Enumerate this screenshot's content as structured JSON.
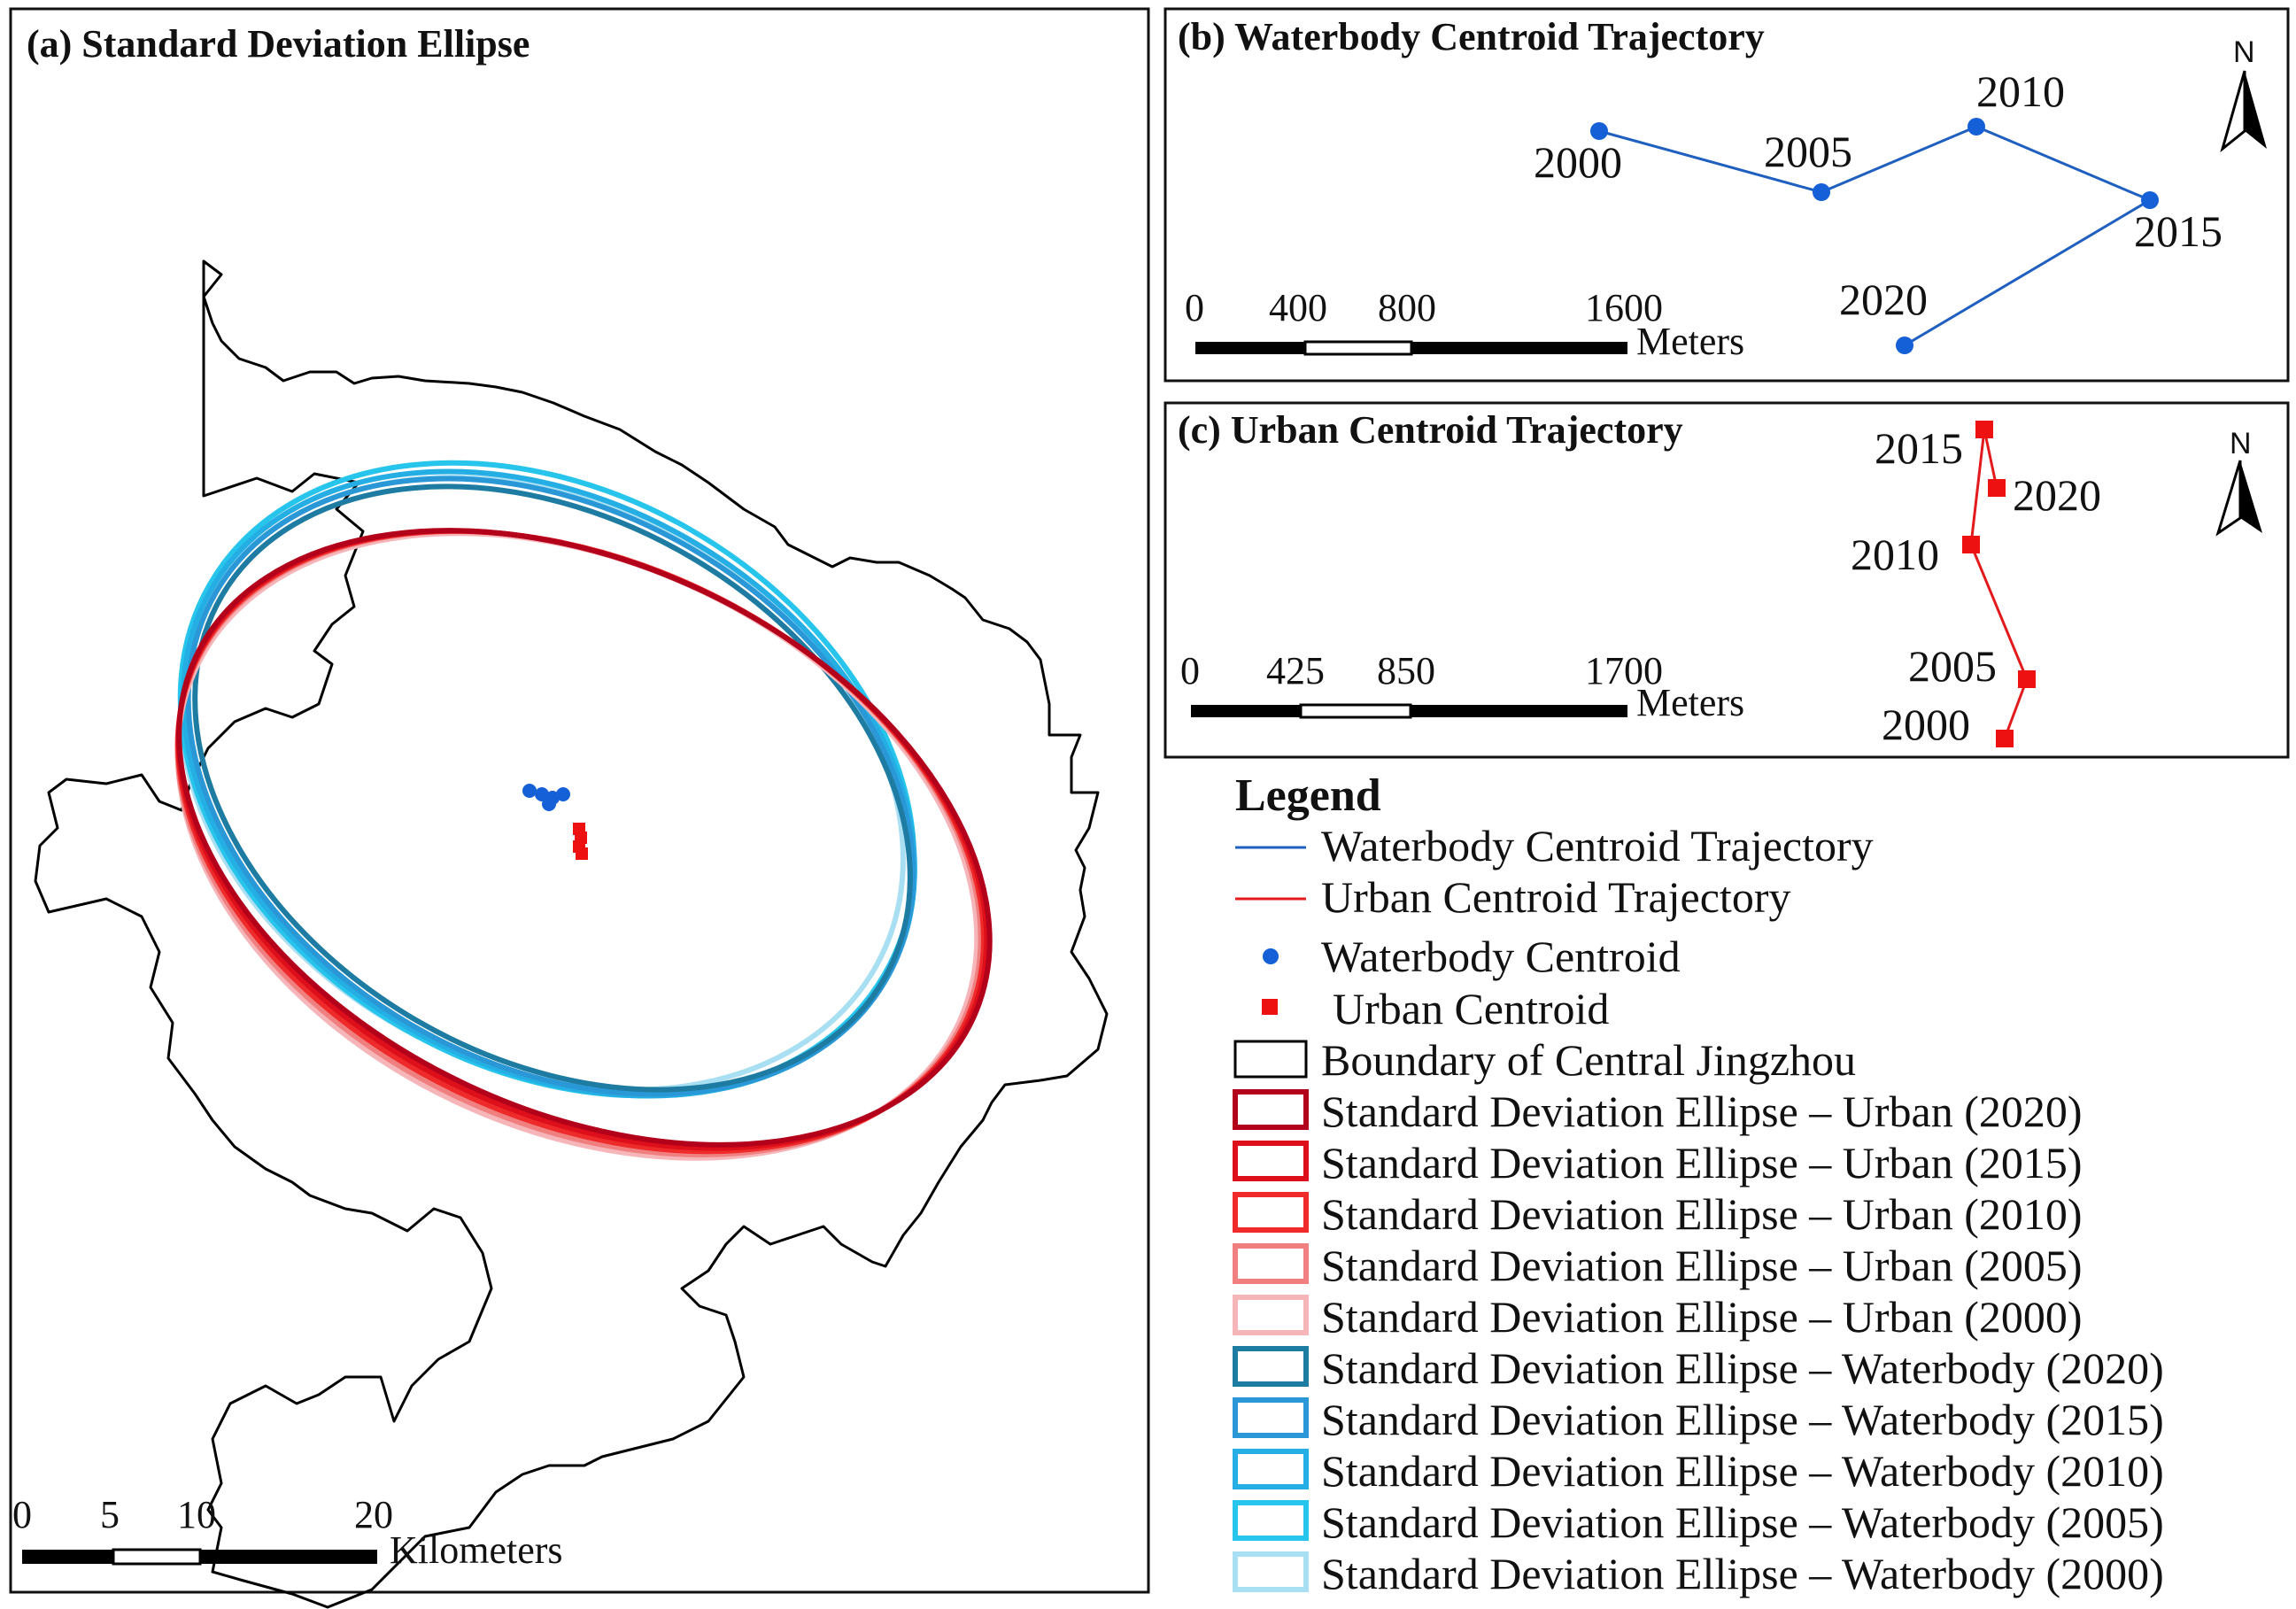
{
  "panel_a": {
    "title": "(a) Standard Deviation Ellipse",
    "scale": {
      "labels": [
        "0",
        "5",
        "10",
        "20"
      ],
      "unit": "Kilometers"
    }
  },
  "panel_b": {
    "title": "(b) Waterbody Centroid Trajectory",
    "north": "N",
    "points": [
      {
        "year": "2000"
      },
      {
        "year": "2005"
      },
      {
        "year": "2010"
      },
      {
        "year": "2015"
      },
      {
        "year": "2020"
      }
    ],
    "scale": {
      "labels": [
        "0",
        "400",
        "800",
        "1600"
      ],
      "unit": "Meters"
    }
  },
  "panel_c": {
    "title": "(c) Urban Centroid Trajectory",
    "north": "N",
    "points": [
      {
        "year": "2000"
      },
      {
        "year": "2005"
      },
      {
        "year": "2010"
      },
      {
        "year": "2015"
      },
      {
        "year": "2020"
      }
    ],
    "scale": {
      "labels": [
        "0",
        "425",
        "850",
        "1700"
      ],
      "unit": "Meters"
    }
  },
  "legend": {
    "title": "Legend",
    "items": [
      {
        "label": "Waterbody Centroid Trajectory",
        "color": "#1f5fbf"
      },
      {
        "label": "Urban Centroid Trajectory",
        "color": "#e31a1c"
      },
      {
        "label": "Waterbody Centroid",
        "color": "#1560d6"
      },
      {
        "label": "Urban Centroid",
        "color": "#ee1111"
      },
      {
        "label": "Boundary of Central Jingzhou",
        "color": "#000000"
      },
      {
        "label": "Standard Deviation Ellipse – Urban (2020)",
        "color": "#b3001b"
      },
      {
        "label": "Standard Deviation Ellipse – Urban (2015)",
        "color": "#dd0f1a"
      },
      {
        "label": "Standard Deviation Ellipse – Urban (2010)",
        "color": "#ee2a2a"
      },
      {
        "label": "Standard Deviation Ellipse – Urban (2005)",
        "color": "#f08080"
      },
      {
        "label": "Standard Deviation Ellipse – Urban (2000)",
        "color": "#f6b5b8"
      },
      {
        "label": "Standard Deviation Ellipse – Waterbody (2020)",
        "color": "#1e7ca3"
      },
      {
        "label": "Standard Deviation Ellipse – Waterbody (2015)",
        "color": "#2a98d6"
      },
      {
        "label": "Standard Deviation Ellipse – Waterbody (2010)",
        "color": "#25aee3"
      },
      {
        "label": "Standard Deviation Ellipse – Waterbody (2005)",
        "color": "#27c4ec"
      },
      {
        "label": "Standard Deviation Ellipse – Waterbody (2000)",
        "color": "#a9dff2"
      }
    ]
  }
}
